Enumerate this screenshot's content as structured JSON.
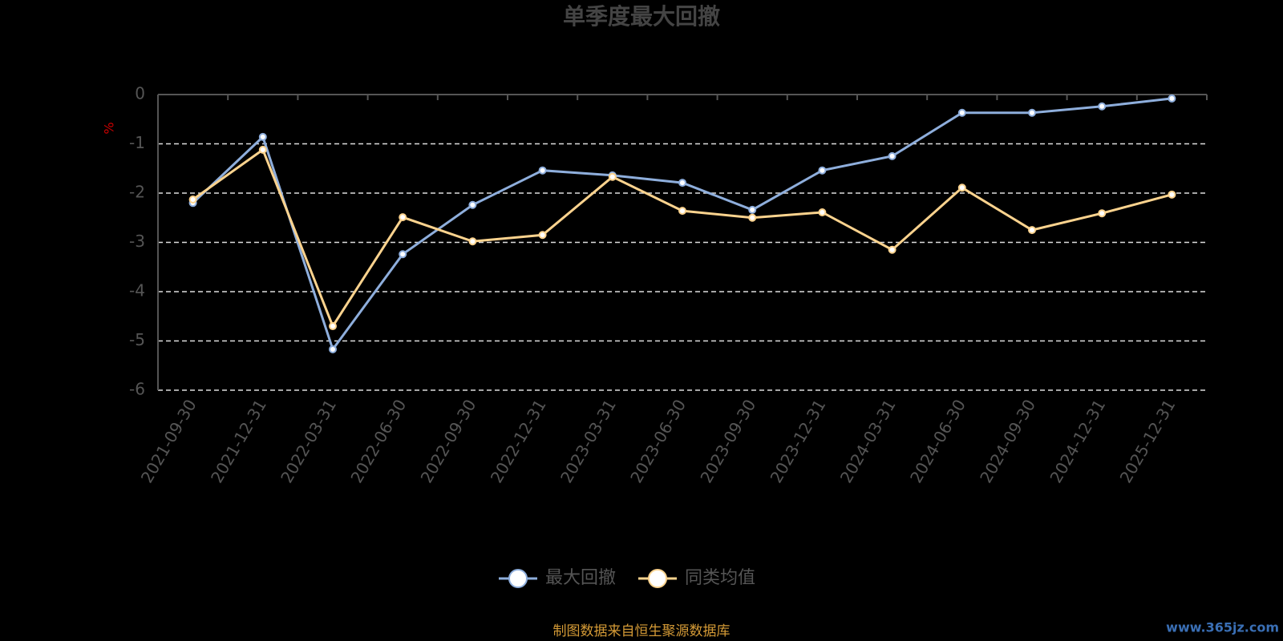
{
  "chart_data": {
    "type": "line",
    "title": "单季度最大回撤",
    "y_label": "%",
    "categories": [
      "2021-09-30",
      "2021-12-31",
      "2022-03-31",
      "2022-06-30",
      "2022-09-30",
      "2022-12-31",
      "2023-03-31",
      "2023-06-30",
      "2023-09-30",
      "2023-12-31",
      "2024-03-31",
      "2024-06-30",
      "2024-09-30",
      "2024-12-31",
      "2025-12-31"
    ],
    "series": [
      {
        "name": "最大回撤",
        "color": "#8eaedc",
        "values": [
          -2.2,
          -0.86,
          -5.17,
          -3.24,
          -2.24,
          -1.54,
          -1.64,
          -1.79,
          -2.34,
          -1.54,
          -1.25,
          -0.37,
          -0.37,
          -0.24,
          -0.08
        ]
      },
      {
        "name": "同类均值",
        "color": "#fcd38e",
        "values": [
          -2.13,
          -1.12,
          -4.7,
          -2.49,
          -2.98,
          -2.85,
          -1.67,
          -2.36,
          -2.5,
          -2.39,
          -3.15,
          -1.89,
          -2.75,
          -2.41,
          -2.03
        ]
      }
    ],
    "ylim": [
      -6,
      0
    ],
    "yticks": [
      0,
      -1,
      -2,
      -3,
      -4,
      -5,
      -6
    ],
    "grid": true,
    "legend": "bottom",
    "source": "制图数据来自恒生聚源数据库",
    "watermark": "www.365jz.com"
  }
}
